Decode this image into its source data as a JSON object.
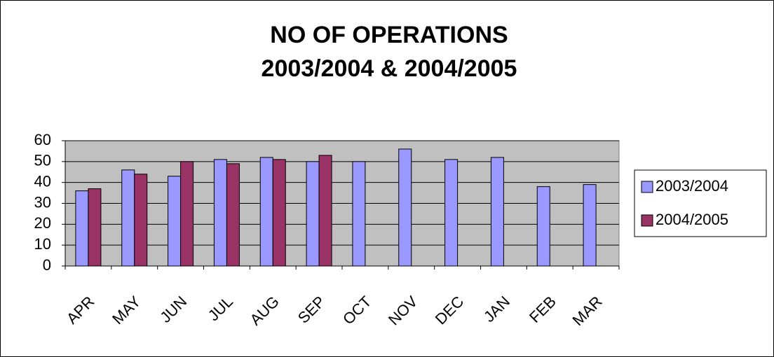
{
  "chart_data": {
    "type": "bar",
    "title": [
      "NO OF OPERATIONS",
      "2003/2004 & 2004/2005"
    ],
    "categories": [
      "APR",
      "MAY",
      "JUN",
      "JUL",
      "AUG",
      "SEP",
      "OCT",
      "NOV",
      "DEC",
      "JAN",
      "FEB",
      "MAR"
    ],
    "series": [
      {
        "name": "2003/2004",
        "color": "#9999ff",
        "values": [
          36,
          46,
          43,
          51,
          52,
          50,
          50,
          56,
          51,
          52,
          38,
          39
        ]
      },
      {
        "name": "2004/2005",
        "color": "#993366",
        "values": [
          37,
          44,
          50,
          49,
          51,
          53,
          null,
          null,
          null,
          null,
          null,
          null
        ]
      }
    ],
    "ylim": [
      0,
      60
    ],
    "yticks": [
      0,
      10,
      20,
      30,
      40,
      50,
      60
    ],
    "grid": true,
    "legend": "right"
  }
}
